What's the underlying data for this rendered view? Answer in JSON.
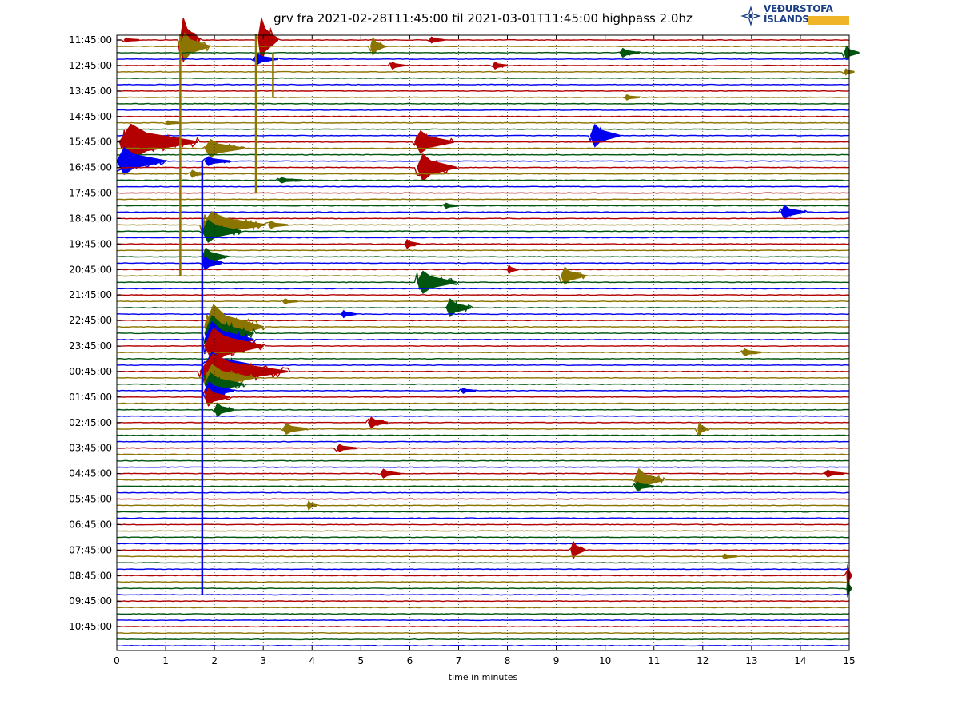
{
  "title": "grv fra 2021-02-28T11:45:00 til 2021-03-01T11:45:00 highpass 2.0hz",
  "logo": {
    "line1": "VEÐURSTOFA",
    "line2": "ÍSLANDS",
    "icon": "vedurstofa-logo-icon"
  },
  "colors": {
    "red": "#b30000",
    "olive": "#8c7400",
    "green": "#00550f",
    "blue": "#0000f0"
  },
  "chart_data": {
    "type": "line",
    "xlabel": "time in minutes",
    "ylabel": "",
    "xlim": [
      0,
      15
    ],
    "x_ticks": [
      0,
      1,
      2,
      3,
      4,
      5,
      6,
      7,
      8,
      9,
      10,
      11,
      12,
      13,
      14,
      15
    ],
    "y_tick_labels": [
      "11:45:00",
      "12:45:00",
      "13:45:00",
      "14:45:00",
      "15:45:00",
      "16:45:00",
      "17:45:00",
      "18:45:00",
      "19:45:00",
      "20:45:00",
      "21:45:00",
      "22:45:00",
      "23:45:00",
      "00:45:00",
      "01:45:00",
      "02:45:00",
      "03:45:00",
      "04:45:00",
      "05:45:00",
      "06:45:00",
      "07:45:00",
      "08:45:00",
      "09:45:00",
      "10:45:00"
    ],
    "traces_per_hour": 4,
    "trace_minutes": 15,
    "color_cycle": [
      "red",
      "olive",
      "green",
      "blue"
    ],
    "grid": true,
    "events": [
      {
        "trace": 0,
        "t": 0.15,
        "amp": 0.5,
        "dur": 0.3
      },
      {
        "trace": 0,
        "t": 1.3,
        "amp": 5,
        "dur": 0.4
      },
      {
        "trace": 0,
        "t": 2.9,
        "amp": 5,
        "dur": 0.4
      },
      {
        "trace": 0,
        "t": 6.4,
        "amp": 0.7,
        "dur": 0.3
      },
      {
        "trace": 1,
        "t": 1.3,
        "amp": 3,
        "dur": 0.6
      },
      {
        "trace": 1,
        "t": 5.2,
        "amp": 2,
        "dur": 0.3
      },
      {
        "trace": 2,
        "t": 10.3,
        "amp": 1,
        "dur": 0.4
      },
      {
        "trace": 2,
        "t": 14.9,
        "amp": 1.5,
        "dur": 0.3
      },
      {
        "trace": 3,
        "t": 2.8,
        "amp": 1.2,
        "dur": 0.5
      },
      {
        "trace": 4,
        "t": 5.6,
        "amp": 0.8,
        "dur": 0.3
      },
      {
        "trace": 4,
        "t": 7.7,
        "amp": 0.8,
        "dur": 0.3
      },
      {
        "trace": 5,
        "t": 14.9,
        "amp": 0.7,
        "dur": 0.2
      },
      {
        "trace": 9,
        "t": 10.4,
        "amp": 0.6,
        "dur": 0.3
      },
      {
        "trace": 13,
        "t": 1.0,
        "amp": 0.5,
        "dur": 0.3
      },
      {
        "trace": 15,
        "t": 9.7,
        "amp": 2.5,
        "dur": 0.6
      },
      {
        "trace": 16,
        "t": 0.05,
        "amp": 4,
        "dur": 1.6
      },
      {
        "trace": 16,
        "t": 6.1,
        "amp": 2.5,
        "dur": 0.8
      },
      {
        "trace": 17,
        "t": 1.8,
        "amp": 2,
        "dur": 0.8
      },
      {
        "trace": 19,
        "t": 0.0,
        "amp": 3,
        "dur": 1.0
      },
      {
        "trace": 19,
        "t": 1.8,
        "amp": 1,
        "dur": 0.5
      },
      {
        "trace": 20,
        "t": 6.15,
        "amp": 3,
        "dur": 0.8
      },
      {
        "trace": 21,
        "t": 1.5,
        "amp": 0.8,
        "dur": 0.3
      },
      {
        "trace": 22,
        "t": 3.3,
        "amp": 0.6,
        "dur": 0.5
      },
      {
        "trace": 26,
        "t": 6.7,
        "amp": 0.6,
        "dur": 0.3
      },
      {
        "trace": 27,
        "t": 13.6,
        "amp": 1.5,
        "dur": 0.5
      },
      {
        "trace": 29,
        "t": 1.75,
        "amp": 3,
        "dur": 1.3
      },
      {
        "trace": 29,
        "t": 3.1,
        "amp": 0.8,
        "dur": 0.4
      },
      {
        "trace": 30,
        "t": 1.75,
        "amp": 2.5,
        "dur": 0.8
      },
      {
        "trace": 32,
        "t": 5.9,
        "amp": 1,
        "dur": 0.3
      },
      {
        "trace": 34,
        "t": 1.75,
        "amp": 2,
        "dur": 0.5
      },
      {
        "trace": 35,
        "t": 1.75,
        "amp": 1.5,
        "dur": 0.4
      },
      {
        "trace": 36,
        "t": 8.0,
        "amp": 1,
        "dur": 0.2
      },
      {
        "trace": 37,
        "t": 9.1,
        "amp": 2,
        "dur": 0.5
      },
      {
        "trace": 38,
        "t": 6.15,
        "amp": 2.5,
        "dur": 0.8
      },
      {
        "trace": 41,
        "t": 3.4,
        "amp": 0.6,
        "dur": 0.3
      },
      {
        "trace": 42,
        "t": 6.75,
        "amp": 2,
        "dur": 0.5
      },
      {
        "trace": 43,
        "t": 4.6,
        "amp": 0.8,
        "dur": 0.3
      },
      {
        "trace": 45,
        "t": 1.8,
        "amp": 5,
        "dur": 1.2
      },
      {
        "trace": 46,
        "t": 1.8,
        "amp": 4,
        "dur": 1.0
      },
      {
        "trace": 47,
        "t": 1.8,
        "amp": 4,
        "dur": 1.0
      },
      {
        "trace": 48,
        "t": 1.8,
        "amp": 4,
        "dur": 1.2
      },
      {
        "trace": 49,
        "t": 12.8,
        "amp": 0.8,
        "dur": 0.4
      },
      {
        "trace": 51,
        "t": 1.8,
        "amp": 3,
        "dur": 1.0
      },
      {
        "trace": 52,
        "t": 1.7,
        "amp": 4,
        "dur": 1.8
      },
      {
        "trace": 53,
        "t": 1.8,
        "amp": 3,
        "dur": 1.0
      },
      {
        "trace": 54,
        "t": 1.8,
        "amp": 2.5,
        "dur": 0.8
      },
      {
        "trace": 55,
        "t": 1.8,
        "amp": 2,
        "dur": 0.6
      },
      {
        "trace": 55,
        "t": 7.05,
        "amp": 0.6,
        "dur": 0.3
      },
      {
        "trace": 56,
        "t": 1.8,
        "amp": 2,
        "dur": 0.5
      },
      {
        "trace": 58,
        "t": 2.0,
        "amp": 1.5,
        "dur": 0.4
      },
      {
        "trace": 60,
        "t": 5.15,
        "amp": 1.2,
        "dur": 0.4
      },
      {
        "trace": 61,
        "t": 3.4,
        "amp": 1.2,
        "dur": 0.5
      },
      {
        "trace": 61,
        "t": 11.9,
        "amp": 1.5,
        "dur": 0.2
      },
      {
        "trace": 64,
        "t": 4.5,
        "amp": 0.8,
        "dur": 0.4
      },
      {
        "trace": 68,
        "t": 5.4,
        "amp": 1,
        "dur": 0.4
      },
      {
        "trace": 68,
        "t": 14.5,
        "amp": 0.8,
        "dur": 0.4
      },
      {
        "trace": 69,
        "t": 10.6,
        "amp": 2.5,
        "dur": 0.6
      },
      {
        "trace": 70,
        "t": 10.6,
        "amp": 1,
        "dur": 0.4
      },
      {
        "trace": 73,
        "t": 3.9,
        "amp": 1,
        "dur": 0.2
      },
      {
        "trace": 80,
        "t": 9.3,
        "amp": 2,
        "dur": 0.3
      },
      {
        "trace": 81,
        "t": 12.4,
        "amp": 0.6,
        "dur": 0.3
      },
      {
        "trace": 84,
        "t": 14.95,
        "amp": 2.5,
        "dur": 0.1
      },
      {
        "trace": 86,
        "t": 14.95,
        "amp": 2,
        "dur": 0.1
      }
    ],
    "long_spikes": [
      {
        "trace": 0,
        "t": 1.3,
        "length_traces": 37,
        "color": "olive"
      },
      {
        "trace": 0,
        "t": 2.85,
        "length_traces": 24,
        "color": "olive"
      },
      {
        "trace": 3,
        "t": 3.2,
        "length_traces": 6,
        "color": "olive"
      },
      {
        "trace": 20,
        "t": 1.75,
        "length_traces": 67,
        "color": "blue"
      }
    ]
  }
}
